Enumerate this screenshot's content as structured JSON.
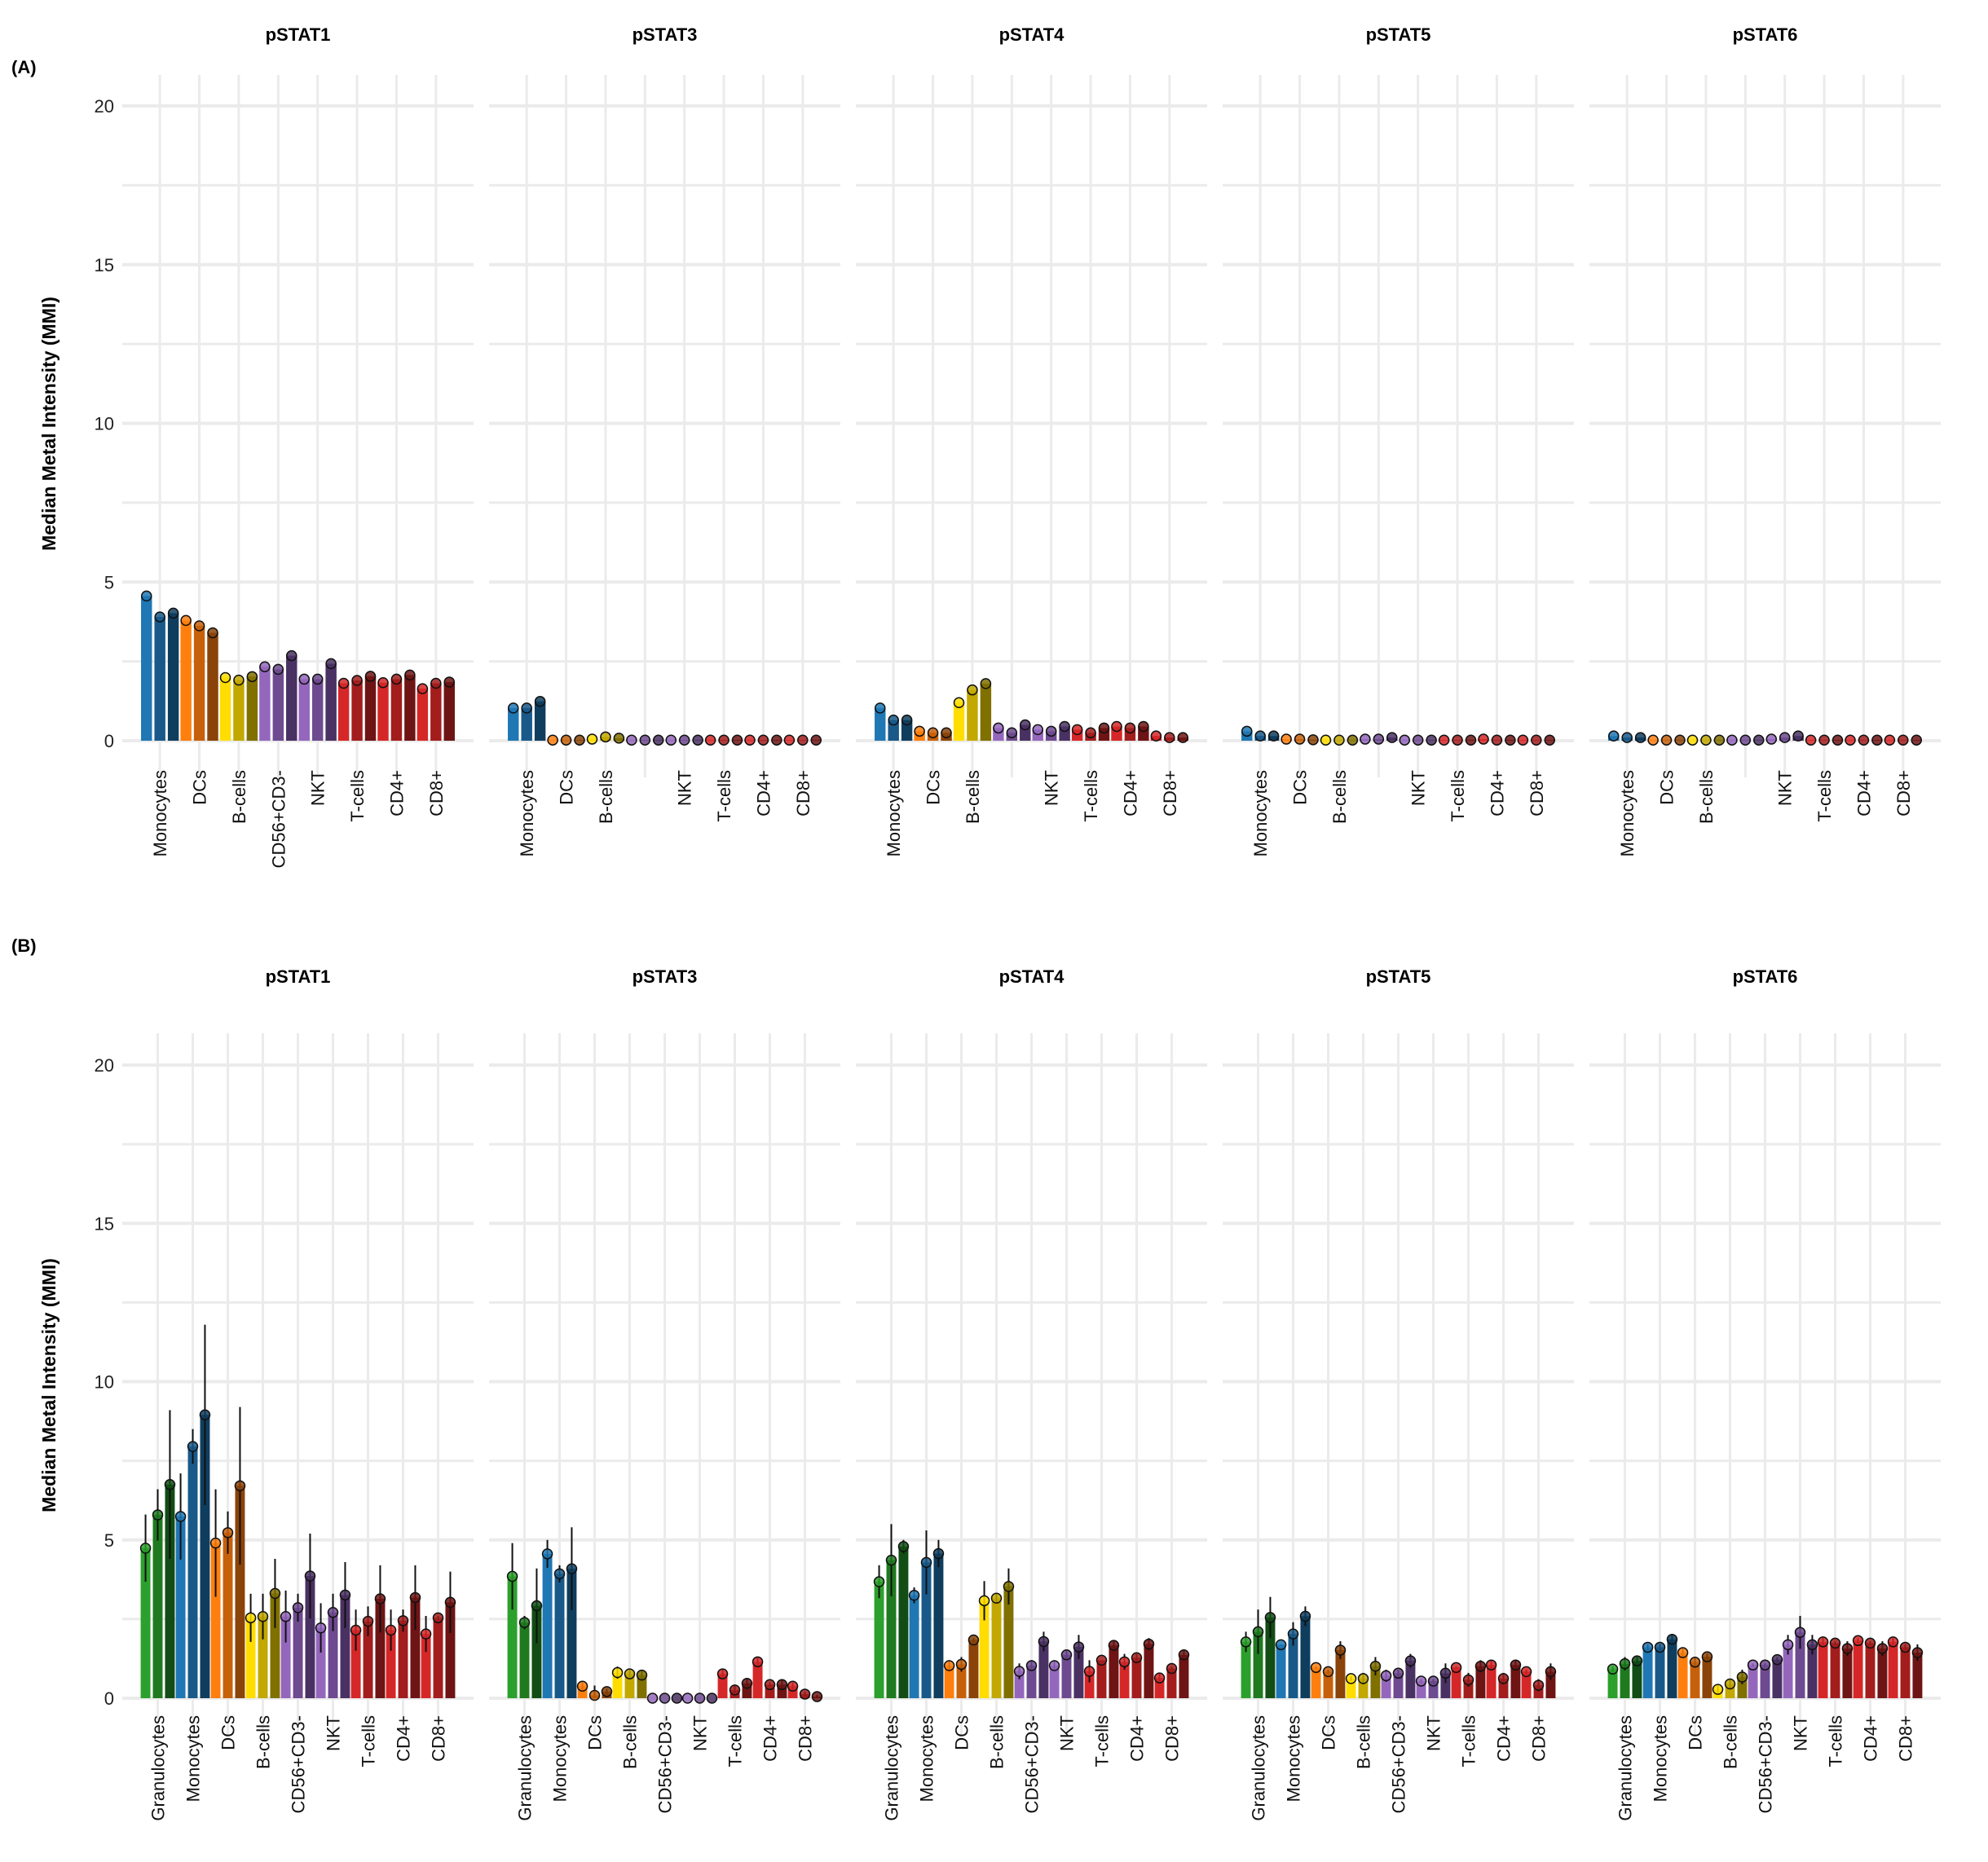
{
  "chart_data": [
    {
      "type": "bar",
      "panel_label": "(A)",
      "ylabel": "Median Metal Intensity (MMI)",
      "xlabel": "",
      "ylim": [
        0,
        20
      ],
      "yticks": [
        0,
        5,
        10,
        15,
        20
      ],
      "ytick_labels": [
        "0",
        "5",
        "10",
        "15",
        "20"
      ],
      "grid": true,
      "categories": [
        "Monocytes",
        "DCs",
        "B-cells",
        "CD56+CD3-",
        "NKT",
        "T-cells",
        "CD4+",
        "CD8+"
      ],
      "category_color_families": [
        "blue",
        "orange",
        "yellow",
        "purple",
        "purple",
        "red",
        "red",
        "red"
      ],
      "bars_per_category": 3,
      "facets": [
        {
          "title": "pSTAT1",
          "hidden_category_labels": [],
          "values": [
            [
              4.56,
              3.9,
              4.02
            ],
            [
              3.79,
              3.62,
              3.4
            ],
            [
              1.99,
              1.91,
              2.02
            ],
            [
              2.33,
              2.25,
              2.68
            ],
            [
              1.94,
              1.94,
              2.43
            ],
            [
              1.81,
              1.9,
              2.03
            ],
            [
              1.83,
              1.94,
              2.07
            ],
            [
              1.64,
              1.81,
              1.85
            ]
          ]
        },
        {
          "title": "pSTAT3",
          "hidden_category_labels": [
            "CD56+CD3-"
          ],
          "values": [
            [
              1.03,
              1.03,
              1.24
            ],
            [
              0.02,
              0.02,
              0.02
            ],
            [
              0.05,
              0.12,
              0.08
            ],
            [
              0.02,
              0.02,
              0.02
            ],
            [
              0.02,
              0.02,
              0.02
            ],
            [
              0.02,
              0.02,
              0.02
            ],
            [
              0.02,
              0.02,
              0.02
            ],
            [
              0.02,
              0.02,
              0.02
            ]
          ]
        },
        {
          "title": "pSTAT4",
          "hidden_category_labels": [
            "CD56+CD3-"
          ],
          "values": [
            [
              1.03,
              0.65,
              0.65
            ],
            [
              0.3,
              0.25,
              0.25
            ],
            [
              1.2,
              1.6,
              1.8
            ],
            [
              0.4,
              0.25,
              0.5
            ],
            [
              0.35,
              0.3,
              0.45
            ],
            [
              0.35,
              0.25,
              0.4
            ],
            [
              0.45,
              0.4,
              0.45
            ],
            [
              0.15,
              0.1,
              0.1
            ]
          ]
        },
        {
          "title": "pSTAT5",
          "hidden_category_labels": [
            "CD56+CD3-"
          ],
          "values": [
            [
              0.3,
              0.15,
              0.15
            ],
            [
              0.05,
              0.05,
              0.03
            ],
            [
              0.02,
              0.02,
              0.02
            ],
            [
              0.05,
              0.05,
              0.1
            ],
            [
              0.02,
              0.02,
              0.02
            ],
            [
              0.02,
              0.02,
              0.02
            ],
            [
              0.05,
              0.02,
              0.02
            ],
            [
              0.02,
              0.02,
              0.02
            ]
          ]
        },
        {
          "title": "pSTAT6",
          "hidden_category_labels": [
            "CD56+CD3-"
          ],
          "values": [
            [
              0.15,
              0.1,
              0.1
            ],
            [
              0.02,
              0.02,
              0.02
            ],
            [
              0.02,
              0.02,
              0.02
            ],
            [
              0.02,
              0.02,
              0.02
            ],
            [
              0.05,
              0.1,
              0.15
            ],
            [
              0.02,
              0.02,
              0.02
            ],
            [
              0.02,
              0.02,
              0.02
            ],
            [
              0.02,
              0.02,
              0.02
            ]
          ]
        }
      ]
    },
    {
      "type": "bar",
      "panel_label": "(B)",
      "ylabel": "Median Metal Intensity (MMI)",
      "xlabel": "",
      "ylim": [
        0,
        20
      ],
      "yticks": [
        0,
        5,
        10,
        15,
        20
      ],
      "ytick_labels": [
        "0",
        "5",
        "10",
        "15",
        "20"
      ],
      "grid": true,
      "categories": [
        "Granulocytes",
        "Monocytes",
        "DCs",
        "B-cells",
        "CD56+CD3-",
        "NKT",
        "T-cells",
        "CD4+",
        "CD8+"
      ],
      "category_color_families": [
        "green",
        "blue",
        "orange",
        "yellow",
        "purple",
        "purple",
        "red",
        "red",
        "red"
      ],
      "bars_per_category": 3,
      "facets": [
        {
          "title": "pSTAT1",
          "hidden_category_labels": [],
          "values": [
            [
              4.74,
              5.79,
              6.75
            ],
            [
              5.74,
              7.95,
              8.95
            ],
            [
              4.9,
              5.23,
              6.71
            ],
            [
              2.54,
              2.58,
              3.31
            ],
            [
              2.58,
              2.86,
              3.86
            ],
            [
              2.22,
              2.71,
              3.26
            ],
            [
              2.15,
              2.43,
              3.14
            ],
            [
              2.15,
              2.45,
              3.18
            ],
            [
              2.03,
              2.54,
              3.03
            ]
          ],
          "error_max": [
            [
              5.8,
              6.6,
              9.1
            ],
            [
              7.1,
              8.5,
              11.8
            ],
            [
              6.6,
              5.9,
              9.2
            ],
            [
              3.3,
              3.3,
              4.4
            ],
            [
              3.4,
              3.3,
              5.2
            ],
            [
              3.0,
              3.3,
              4.3
            ],
            [
              2.8,
              2.9,
              4.2
            ],
            [
              2.8,
              2.8,
              4.2
            ],
            [
              2.6,
              2.6,
              4.0
            ]
          ]
        },
        {
          "title": "pSTAT3",
          "hidden_category_labels": [],
          "values": [
            [
              3.85,
              2.39,
              2.92
            ],
            [
              4.56,
              3.93,
              4.09
            ],
            [
              0.38,
              0.09,
              0.21
            ],
            [
              0.81,
              0.77,
              0.73
            ],
            [
              0.0,
              0.0,
              0.0
            ],
            [
              0.0,
              0.0,
              0.0
            ],
            [
              0.77,
              0.26,
              0.47
            ],
            [
              1.15,
              0.43,
              0.43
            ],
            [
              0.38,
              0.13,
              0.05
            ]
          ],
          "error_max": [
            [
              4.9,
              2.6,
              4.1
            ],
            [
              5.0,
              4.2,
              5.4
            ],
            [
              0.5,
              0.4,
              0.3
            ],
            [
              1.0,
              0.9,
              0.9
            ],
            [
              0,
              0,
              0
            ],
            [
              0,
              0,
              0
            ],
            [
              0.9,
              0.4,
              0.6
            ],
            [
              1.3,
              0.5,
              0.6
            ],
            [
              0.5,
              0.2,
              0.1
            ]
          ]
        },
        {
          "title": "pSTAT4",
          "hidden_category_labels": [],
          "values": [
            [
              3.68,
              4.36,
              4.79
            ],
            [
              3.25,
              4.29,
              4.57
            ],
            [
              1.03,
              1.07,
              1.84
            ],
            [
              3.08,
              3.16,
              3.53
            ],
            [
              0.85,
              1.03,
              1.79
            ],
            [
              1.03,
              1.37,
              1.62
            ],
            [
              0.85,
              1.2,
              1.67
            ],
            [
              1.15,
              1.28,
              1.71
            ],
            [
              0.64,
              0.94,
              1.37
            ]
          ],
          "error_max": [
            [
              4.2,
              5.5,
              5.0
            ],
            [
              3.5,
              5.3,
              5.0
            ],
            [
              1.2,
              1.3,
              1.9
            ],
            [
              3.7,
              3.3,
              4.1
            ],
            [
              1.1,
              1.2,
              2.1
            ],
            [
              1.2,
              1.5,
              2.0
            ],
            [
              1.2,
              1.2,
              1.8
            ],
            [
              1.4,
              1.4,
              1.9
            ],
            [
              0.8,
              1.0,
              1.5
            ]
          ]
        },
        {
          "title": "pSTAT5",
          "hidden_category_labels": [],
          "values": [
            [
              1.78,
              2.1,
              2.55
            ],
            [
              1.69,
              2.03,
              2.59
            ],
            [
              0.97,
              0.84,
              1.52
            ],
            [
              0.62,
              0.62,
              1.01
            ],
            [
              0.71,
              0.79,
              1.18
            ],
            [
              0.54,
              0.54,
              0.79
            ],
            [
              0.97,
              0.58,
              1.01
            ],
            [
              1.05,
              0.62,
              1.05
            ],
            [
              0.84,
              0.41,
              0.84
            ]
          ],
          "error_max": [
            [
              2.1,
              2.8,
              3.2
            ],
            [
              1.7,
              2.4,
              2.9
            ],
            [
              1.0,
              0.9,
              1.8
            ],
            [
              0.7,
              0.8,
              1.3
            ],
            [
              0.9,
              0.9,
              1.4
            ],
            [
              0.6,
              0.6,
              1.1
            ],
            [
              1.0,
              0.8,
              1.2
            ],
            [
              1.2,
              0.8,
              1.2
            ],
            [
              0.9,
              0.6,
              1.1
            ]
          ]
        },
        {
          "title": "pSTAT6",
          "hidden_category_labels": [],
          "values": [
            [
              0.92,
              1.09,
              1.18
            ],
            [
              1.61,
              1.61,
              1.86
            ],
            [
              1.44,
              1.14,
              1.31
            ],
            [
              0.28,
              0.45,
              0.67
            ],
            [
              1.05,
              1.05,
              1.22
            ],
            [
              1.69,
              2.08,
              1.69
            ],
            [
              1.78,
              1.74,
              1.57
            ],
            [
              1.82,
              1.74,
              1.57
            ],
            [
              1.78,
              1.61,
              1.44
            ]
          ],
          "error_max": [
            [
              1.0,
              1.3,
              1.3
            ],
            [
              1.7,
              1.7,
              2.0
            ],
            [
              1.6,
              1.3,
              1.4
            ],
            [
              0.4,
              0.6,
              0.9
            ],
            [
              1.1,
              1.1,
              1.3
            ],
            [
              2.0,
              2.6,
              2.0
            ],
            [
              1.9,
              1.8,
              1.8
            ],
            [
              1.9,
              1.8,
              1.8
            ],
            [
              1.9,
              1.7,
              1.7
            ]
          ]
        }
      ]
    }
  ],
  "colors": {
    "green": [
      "#2ca02c",
      "#1f7a1f",
      "#114d14"
    ],
    "blue": [
      "#1f77b4",
      "#18598a",
      "#0f3d5e"
    ],
    "orange": [
      "#ff7f0e",
      "#c7600b",
      "#8a4308"
    ],
    "yellow": [
      "#ffdd00",
      "#c2a800",
      "#807000"
    ],
    "purple": [
      "#9467bd",
      "#6e4a90",
      "#4a3163"
    ],
    "red": [
      "#d62728",
      "#a31d1d",
      "#6e1414"
    ],
    "grid": "#ebebeb"
  }
}
